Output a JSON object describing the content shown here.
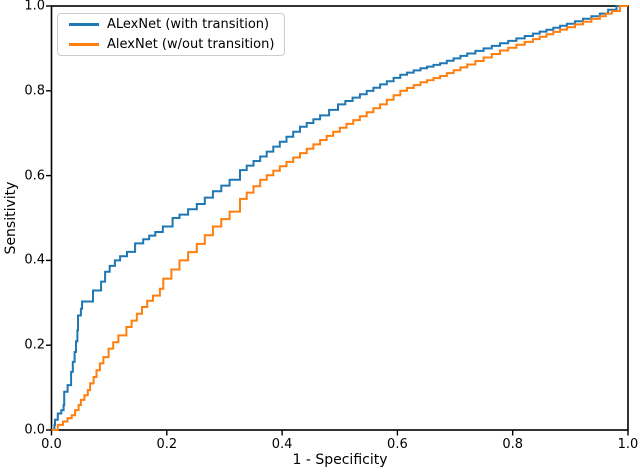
{
  "figure": {
    "xlabel": "1 - Specificity",
    "ylabel": "Sensitivity",
    "x_ticks": [
      "0.0",
      "0.2",
      "0.4",
      "0.6",
      "0.8",
      "1.0"
    ],
    "y_ticks": [
      "0.0",
      "0.2",
      "0.4",
      "0.6",
      "0.8",
      "1.0"
    ],
    "background_color": "#ffffff",
    "spine_color": "#000000"
  },
  "legend": {
    "entries": [
      {
        "label": "ALexNet (with transition)",
        "color": "#1f77b4"
      },
      {
        "label": "AlexNet (w/out transition)",
        "color": "#ff7f0e"
      }
    ]
  },
  "chart_data": {
    "type": "line",
    "subtype": "roc-step-curves",
    "title": "",
    "xlabel": "1 - Specificity",
    "ylabel": "Sensitivity",
    "xlim": [
      0.0,
      1.0
    ],
    "ylim": [
      0.0,
      1.0
    ],
    "x_tick_values": [
      0.0,
      0.2,
      0.4,
      0.6,
      0.8,
      1.0
    ],
    "y_tick_values": [
      0.0,
      0.2,
      0.4,
      0.6,
      0.8,
      1.0
    ],
    "grid": false,
    "legend_position": "upper left",
    "series": [
      {
        "name": "ALexNet (with transition)",
        "color": "#1f77b4",
        "points": [
          [
            0.0,
            0.0
          ],
          [
            0.005,
            0.012
          ],
          [
            0.006,
            0.024
          ],
          [
            0.011,
            0.039
          ],
          [
            0.017,
            0.047
          ],
          [
            0.021,
            0.059
          ],
          [
            0.022,
            0.09
          ],
          [
            0.028,
            0.106
          ],
          [
            0.034,
            0.137
          ],
          [
            0.04,
            0.184
          ],
          [
            0.045,
            0.235
          ],
          [
            0.046,
            0.27
          ],
          [
            0.051,
            0.286
          ],
          [
            0.053,
            0.303
          ],
          [
            0.072,
            0.329
          ],
          [
            0.086,
            0.35
          ],
          [
            0.093,
            0.373
          ],
          [
            0.101,
            0.387
          ],
          [
            0.11,
            0.4
          ],
          [
            0.119,
            0.41
          ],
          [
            0.131,
            0.42
          ],
          [
            0.145,
            0.44
          ],
          [
            0.159,
            0.45
          ],
          [
            0.18,
            0.467
          ],
          [
            0.193,
            0.48
          ],
          [
            0.21,
            0.5
          ],
          [
            0.222,
            0.508
          ],
          [
            0.252,
            0.533
          ],
          [
            0.28,
            0.563
          ],
          [
            0.309,
            0.59
          ],
          [
            0.327,
            0.613
          ],
          [
            0.362,
            0.645
          ],
          [
            0.396,
            0.68
          ],
          [
            0.431,
            0.715
          ],
          [
            0.466,
            0.742
          ],
          [
            0.497,
            0.768
          ],
          [
            0.535,
            0.792
          ],
          [
            0.57,
            0.815
          ],
          [
            0.605,
            0.838
          ],
          [
            0.64,
            0.853
          ],
          [
            0.674,
            0.865
          ],
          [
            0.721,
            0.888
          ],
          [
            0.778,
            0.912
          ],
          [
            0.835,
            0.935
          ],
          [
            0.894,
            0.958
          ],
          [
            0.922,
            0.97
          ],
          [
            0.951,
            0.982
          ],
          [
            0.98,
            1.0
          ],
          [
            1.0,
            1.0
          ]
        ]
      },
      {
        "name": "AlexNet (w/out transition)",
        "color": "#ff7f0e",
        "points": [
          [
            0.0,
            0.0
          ],
          [
            0.011,
            0.012
          ],
          [
            0.02,
            0.02
          ],
          [
            0.028,
            0.028
          ],
          [
            0.035,
            0.035
          ],
          [
            0.041,
            0.047
          ],
          [
            0.047,
            0.059
          ],
          [
            0.051,
            0.071
          ],
          [
            0.057,
            0.082
          ],
          [
            0.063,
            0.094
          ],
          [
            0.067,
            0.11
          ],
          [
            0.073,
            0.125
          ],
          [
            0.078,
            0.141
          ],
          [
            0.084,
            0.157
          ],
          [
            0.09,
            0.172
          ],
          [
            0.099,
            0.192
          ],
          [
            0.107,
            0.207
          ],
          [
            0.116,
            0.223
          ],
          [
            0.13,
            0.243
          ],
          [
            0.139,
            0.258
          ],
          [
            0.148,
            0.274
          ],
          [
            0.157,
            0.29
          ],
          [
            0.166,
            0.305
          ],
          [
            0.176,
            0.317
          ],
          [
            0.188,
            0.333
          ],
          [
            0.194,
            0.357
          ],
          [
            0.222,
            0.4
          ],
          [
            0.252,
            0.439
          ],
          [
            0.28,
            0.48
          ],
          [
            0.309,
            0.515
          ],
          [
            0.327,
            0.545
          ],
          [
            0.362,
            0.59
          ],
          [
            0.396,
            0.622
          ],
          [
            0.431,
            0.653
          ],
          [
            0.466,
            0.684
          ],
          [
            0.5,
            0.713
          ],
          [
            0.535,
            0.74
          ],
          [
            0.57,
            0.768
          ],
          [
            0.605,
            0.8
          ],
          [
            0.64,
            0.82
          ],
          [
            0.674,
            0.835
          ],
          [
            0.721,
            0.862
          ],
          [
            0.778,
            0.895
          ],
          [
            0.835,
            0.922
          ],
          [
            0.894,
            0.95
          ],
          [
            0.922,
            0.963
          ],
          [
            0.951,
            0.976
          ],
          [
            0.972,
            0.988
          ],
          [
            0.986,
            1.0
          ],
          [
            1.0,
            1.0
          ]
        ]
      }
    ]
  }
}
